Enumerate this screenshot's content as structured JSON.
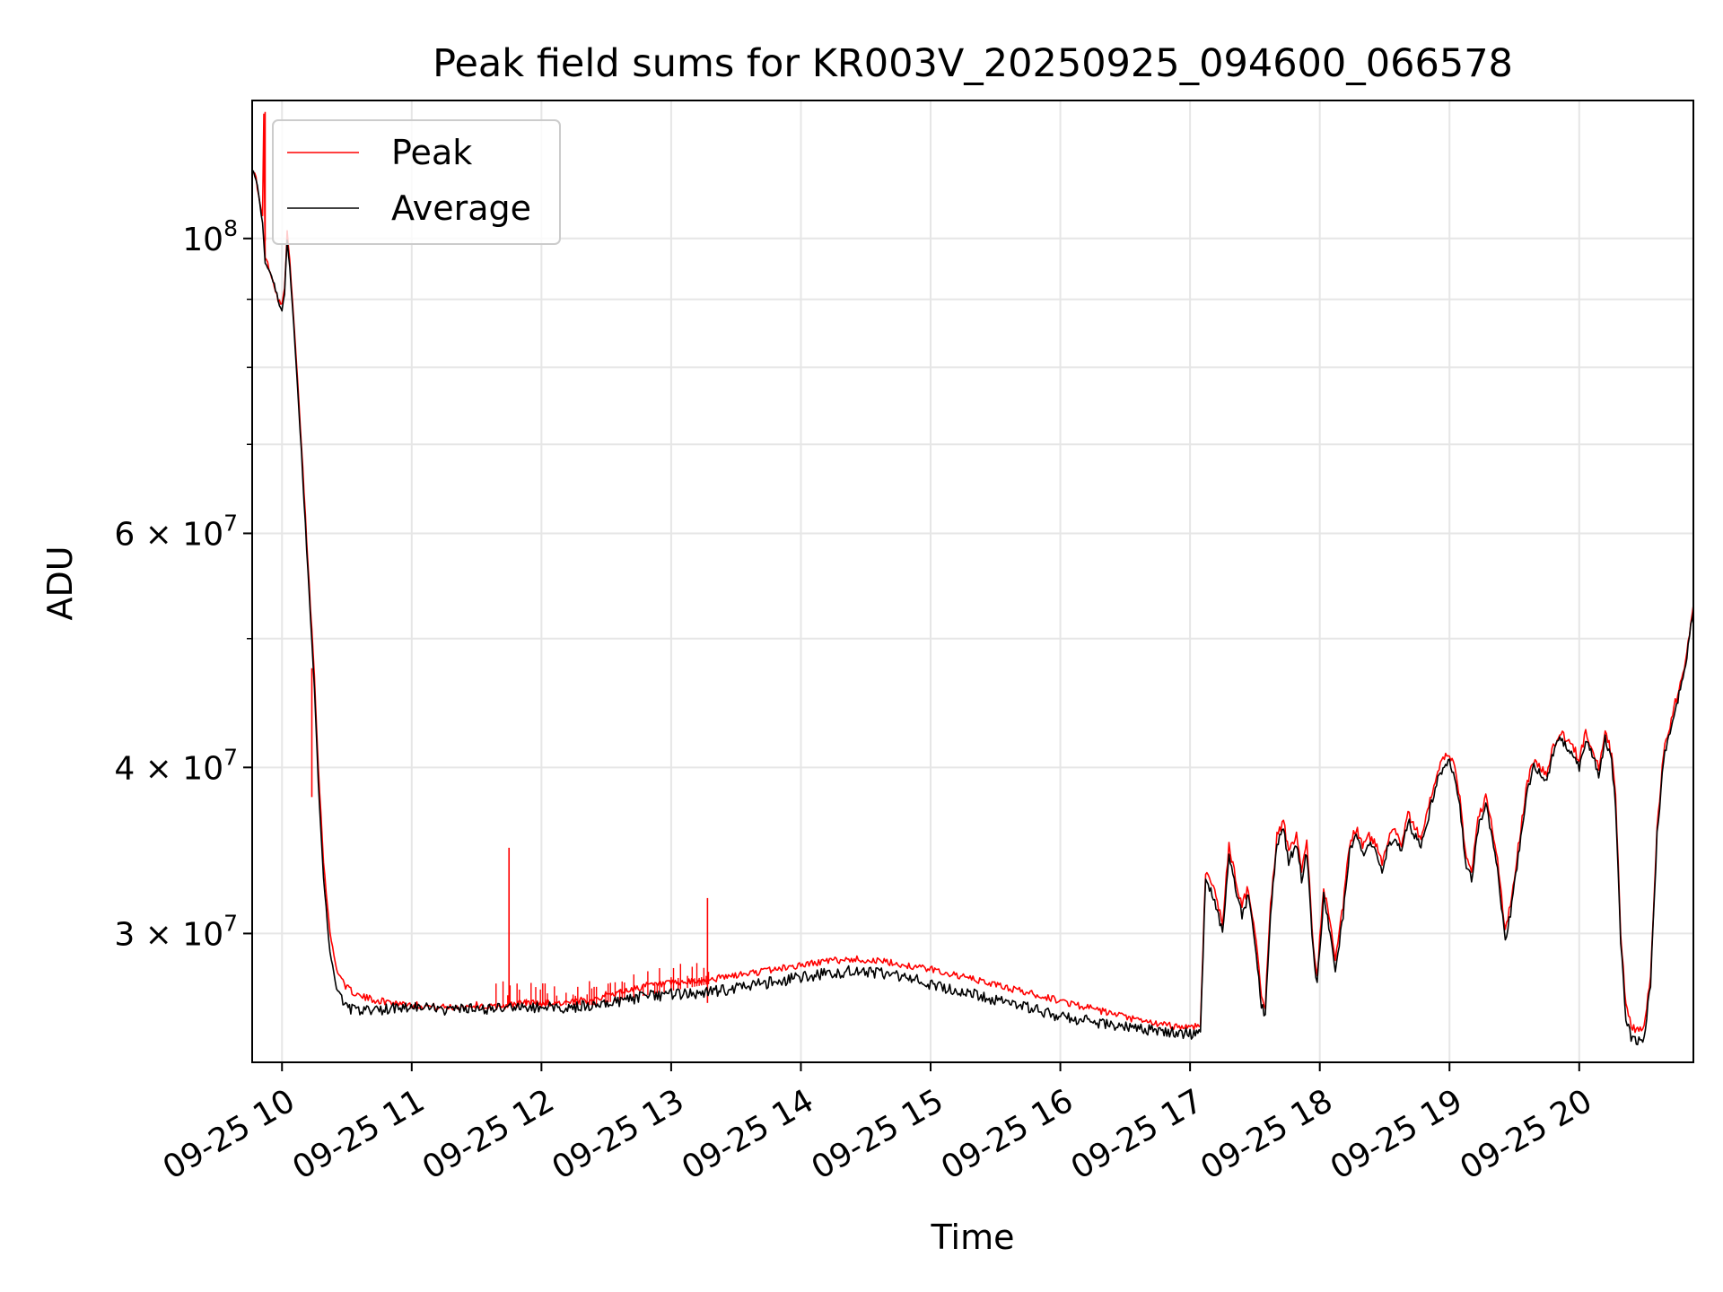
{
  "chart_data": {
    "type": "line",
    "title": "Peak field sums for KR003V_20250925_094600_066578",
    "xlabel": "Time",
    "ylabel": "ADU",
    "yscale": "log",
    "xlim": [
      9.77,
      20.88
    ],
    "ylim": [
      24000000,
      127000000
    ],
    "grid": true,
    "legend_position": "upper-left",
    "x_ticks": [
      {
        "value": 10,
        "label": "09-25 10"
      },
      {
        "value": 11,
        "label": "09-25 11"
      },
      {
        "value": 12,
        "label": "09-25 12"
      },
      {
        "value": 13,
        "label": "09-25 13"
      },
      {
        "value": 14,
        "label": "09-25 14"
      },
      {
        "value": 15,
        "label": "09-25 15"
      },
      {
        "value": 16,
        "label": "09-25 16"
      },
      {
        "value": 17,
        "label": "09-25 17"
      },
      {
        "value": 18,
        "label": "09-25 18"
      },
      {
        "value": 19,
        "label": "09-25 19"
      },
      {
        "value": 20,
        "label": "09-25 20"
      }
    ],
    "y_major_ticks": [
      {
        "value": 30000000,
        "mantissa": "3",
        "exp": "7"
      },
      {
        "value": 40000000,
        "mantissa": "4",
        "exp": "7"
      },
      {
        "value": 60000000,
        "mantissa": "6",
        "exp": "7"
      },
      {
        "value": 100000000,
        "mantissa": "",
        "exp": "8"
      }
    ],
    "y_minor_ticks": [
      50000000,
      70000000,
      80000000,
      90000000
    ],
    "series": [
      {
        "name": "Peak",
        "color": "#ff0000",
        "points": [
          [
            9.77,
            113
          ],
          [
            9.8,
            111
          ],
          [
            9.83,
            106
          ],
          [
            9.85,
            104
          ],
          [
            9.86,
            124
          ],
          [
            9.87,
            97
          ],
          [
            9.9,
            95
          ],
          [
            9.93,
            93
          ],
          [
            9.97,
            90
          ],
          [
            10.0,
            89
          ],
          [
            10.02,
            92
          ],
          [
            10.04,
            101
          ],
          [
            10.06,
            96
          ],
          [
            10.1,
            84
          ],
          [
            10.15,
            70
          ],
          [
            10.2,
            57
          ],
          [
            10.25,
            47
          ],
          [
            10.28,
            40
          ],
          [
            10.32,
            34
          ],
          [
            10.37,
            30
          ],
          [
            10.42,
            28.2
          ],
          [
            10.5,
            27.3
          ],
          [
            10.6,
            26.9
          ],
          [
            10.75,
            26.7
          ],
          [
            10.9,
            26.6
          ],
          [
            11.05,
            26.5
          ],
          [
            11.2,
            26.4
          ],
          [
            11.35,
            26.4
          ],
          [
            11.5,
            26.5
          ],
          [
            11.6,
            26.4
          ],
          [
            11.75,
            26.5
          ],
          [
            11.85,
            26.6
          ],
          [
            12.0,
            26.6
          ],
          [
            12.2,
            26.6
          ],
          [
            12.4,
            26.8
          ],
          [
            12.6,
            27.1
          ],
          [
            12.8,
            27.4
          ],
          [
            13.0,
            27.5
          ],
          [
            13.2,
            27.6
          ],
          [
            13.4,
            27.8
          ],
          [
            13.6,
            28.0
          ],
          [
            13.8,
            28.2
          ],
          [
            14.0,
            28.4
          ],
          [
            14.2,
            28.6
          ],
          [
            14.4,
            28.7
          ],
          [
            14.6,
            28.6
          ],
          [
            14.8,
            28.4
          ],
          [
            15.0,
            28.2
          ],
          [
            15.2,
            27.9
          ],
          [
            15.4,
            27.6
          ],
          [
            15.6,
            27.3
          ],
          [
            15.8,
            27.0
          ],
          [
            16.0,
            26.7
          ],
          [
            16.2,
            26.4
          ],
          [
            16.4,
            26.1
          ],
          [
            16.6,
            25.8
          ],
          [
            16.8,
            25.6
          ],
          [
            17.0,
            25.5
          ],
          [
            17.08,
            25.6
          ],
          [
            17.12,
            33.5
          ],
          [
            17.15,
            33.0
          ],
          [
            17.2,
            32.0
          ],
          [
            17.25,
            30.5
          ],
          [
            17.3,
            35.0
          ],
          [
            17.35,
            33.0
          ],
          [
            17.4,
            31.5
          ],
          [
            17.45,
            32.5
          ],
          [
            17.5,
            30.0
          ],
          [
            17.55,
            27.0
          ],
          [
            17.58,
            26.5
          ],
          [
            17.62,
            31.5
          ],
          [
            17.67,
            35.5
          ],
          [
            17.72,
            36.5
          ],
          [
            17.76,
            34.5
          ],
          [
            17.82,
            35.5
          ],
          [
            17.86,
            33.5
          ],
          [
            17.9,
            35.0
          ],
          [
            17.95,
            29.5
          ],
          [
            17.98,
            28.0
          ],
          [
            18.03,
            32.5
          ],
          [
            18.08,
            30.5
          ],
          [
            18.12,
            28.5
          ],
          [
            18.18,
            31.5
          ],
          [
            18.23,
            35.0
          ],
          [
            18.28,
            36.0
          ],
          [
            18.33,
            35.0
          ],
          [
            18.38,
            35.5
          ],
          [
            18.43,
            35.0
          ],
          [
            18.48,
            34.0
          ],
          [
            18.53,
            35.5
          ],
          [
            18.58,
            36.0
          ],
          [
            18.63,
            35.0
          ],
          [
            18.68,
            37.0
          ],
          [
            18.73,
            36.0
          ],
          [
            18.78,
            35.5
          ],
          [
            18.83,
            37.0
          ],
          [
            18.9,
            39.5
          ],
          [
            18.95,
            40.5
          ],
          [
            19.0,
            41.0
          ],
          [
            19.05,
            39.5
          ],
          [
            19.08,
            38.0
          ],
          [
            19.12,
            34.5
          ],
          [
            19.17,
            33.5
          ],
          [
            19.22,
            36.5
          ],
          [
            19.28,
            38.0
          ],
          [
            19.33,
            36.0
          ],
          [
            19.38,
            33.5
          ],
          [
            19.43,
            30.0
          ],
          [
            19.48,
            32.0
          ],
          [
            19.55,
            36.0
          ],
          [
            19.6,
            39.0
          ],
          [
            19.65,
            40.5
          ],
          [
            19.7,
            40.0
          ],
          [
            19.75,
            39.5
          ],
          [
            19.8,
            41.5
          ],
          [
            19.85,
            42.5
          ],
          [
            19.9,
            42.0
          ],
          [
            19.95,
            41.5
          ],
          [
            20.0,
            40.5
          ],
          [
            20.05,
            42.5
          ],
          [
            20.1,
            41.5
          ],
          [
            20.15,
            40.0
          ],
          [
            20.2,
            42.5
          ],
          [
            20.25,
            41.0
          ],
          [
            20.28,
            38.0
          ],
          [
            20.32,
            30.0
          ],
          [
            20.36,
            26.5
          ],
          [
            20.4,
            25.5
          ],
          [
            20.45,
            25.4
          ],
          [
            20.5,
            25.5
          ],
          [
            20.55,
            28.0
          ],
          [
            20.6,
            36.0
          ],
          [
            20.65,
            41.0
          ],
          [
            20.72,
            44.0
          ],
          [
            20.8,
            47.0
          ],
          [
            20.88,
            53.0
          ]
        ],
        "spikes": [
          [
            11.75,
            34.8
          ],
          [
            13.28,
            31.9
          ],
          [
            10.23,
            47.5
          ],
          [
            9.87,
            124.5
          ]
        ]
      },
      {
        "name": "Average",
        "color": "#000000",
        "points": [
          [
            9.77,
            113
          ],
          [
            9.8,
            111
          ],
          [
            9.83,
            106
          ],
          [
            9.85,
            103
          ],
          [
            9.87,
            96
          ],
          [
            9.9,
            95
          ],
          [
            9.93,
            93
          ],
          [
            9.97,
            90
          ],
          [
            10.0,
            88
          ],
          [
            10.02,
            91
          ],
          [
            10.04,
            100
          ],
          [
            10.06,
            95
          ],
          [
            10.1,
            83
          ],
          [
            10.15,
            69
          ],
          [
            10.2,
            56
          ],
          [
            10.25,
            46
          ],
          [
            10.28,
            39
          ],
          [
            10.32,
            33
          ],
          [
            10.37,
            29
          ],
          [
            10.42,
            27.3
          ],
          [
            10.5,
            26.4
          ],
          [
            10.6,
            26.2
          ],
          [
            10.75,
            26.3
          ],
          [
            10.9,
            26.4
          ],
          [
            11.05,
            26.4
          ],
          [
            11.2,
            26.3
          ],
          [
            11.35,
            26.3
          ],
          [
            11.5,
            26.3
          ],
          [
            11.6,
            26.3
          ],
          [
            11.75,
            26.4
          ],
          [
            11.85,
            26.4
          ],
          [
            12.0,
            26.4
          ],
          [
            12.2,
            26.4
          ],
          [
            12.4,
            26.5
          ],
          [
            12.6,
            26.7
          ],
          [
            12.8,
            26.9
          ],
          [
            13.0,
            27.0
          ],
          [
            13.2,
            27.0
          ],
          [
            13.4,
            27.2
          ],
          [
            13.6,
            27.4
          ],
          [
            13.8,
            27.6
          ],
          [
            14.0,
            27.8
          ],
          [
            14.2,
            28.0
          ],
          [
            14.4,
            28.1
          ],
          [
            14.6,
            28.0
          ],
          [
            14.8,
            27.8
          ],
          [
            15.0,
            27.5
          ],
          [
            15.2,
            27.2
          ],
          [
            15.4,
            26.9
          ],
          [
            15.6,
            26.6
          ],
          [
            15.8,
            26.3
          ],
          [
            16.0,
            26.0
          ],
          [
            16.2,
            25.8
          ],
          [
            16.4,
            25.6
          ],
          [
            16.6,
            25.4
          ],
          [
            16.8,
            25.3
          ],
          [
            17.0,
            25.2
          ],
          [
            17.08,
            25.3
          ],
          [
            17.12,
            33.0
          ],
          [
            17.15,
            32.5
          ],
          [
            17.2,
            31.5
          ],
          [
            17.25,
            30.0
          ],
          [
            17.3,
            34.5
          ],
          [
            17.35,
            32.5
          ],
          [
            17.4,
            31.0
          ],
          [
            17.45,
            32.0
          ],
          [
            17.5,
            29.5
          ],
          [
            17.55,
            26.5
          ],
          [
            17.58,
            26.0
          ],
          [
            17.62,
            31.0
          ],
          [
            17.67,
            35.0
          ],
          [
            17.72,
            36.0
          ],
          [
            17.76,
            34.0
          ],
          [
            17.82,
            35.0
          ],
          [
            17.86,
            33.0
          ],
          [
            17.9,
            34.5
          ],
          [
            17.95,
            29.0
          ],
          [
            17.98,
            27.5
          ],
          [
            18.03,
            32.0
          ],
          [
            18.08,
            30.0
          ],
          [
            18.12,
            28.0
          ],
          [
            18.18,
            31.0
          ],
          [
            18.23,
            34.5
          ],
          [
            18.28,
            35.5
          ],
          [
            18.33,
            34.5
          ],
          [
            18.38,
            35.0
          ],
          [
            18.43,
            34.5
          ],
          [
            18.48,
            33.5
          ],
          [
            18.53,
            35.0
          ],
          [
            18.58,
            35.5
          ],
          [
            18.63,
            34.5
          ],
          [
            18.68,
            36.5
          ],
          [
            18.73,
            35.5
          ],
          [
            18.78,
            35.0
          ],
          [
            18.83,
            36.5
          ],
          [
            18.9,
            39.0
          ],
          [
            18.95,
            40.0
          ],
          [
            19.0,
            40.5
          ],
          [
            19.05,
            39.0
          ],
          [
            19.08,
            37.5
          ],
          [
            19.12,
            34.0
          ],
          [
            19.17,
            33.0
          ],
          [
            19.22,
            36.0
          ],
          [
            19.28,
            37.5
          ],
          [
            19.33,
            35.5
          ],
          [
            19.38,
            33.0
          ],
          [
            19.43,
            29.5
          ],
          [
            19.48,
            31.5
          ],
          [
            19.55,
            35.5
          ],
          [
            19.6,
            38.5
          ],
          [
            19.65,
            40.0
          ],
          [
            19.7,
            39.5
          ],
          [
            19.75,
            39.0
          ],
          [
            19.8,
            41.0
          ],
          [
            19.85,
            42.0
          ],
          [
            19.9,
            41.5
          ],
          [
            19.95,
            41.0
          ],
          [
            20.0,
            40.0
          ],
          [
            20.05,
            42.0
          ],
          [
            20.1,
            41.0
          ],
          [
            20.15,
            39.5
          ],
          [
            20.2,
            42.0
          ],
          [
            20.25,
            40.5
          ],
          [
            20.28,
            37.5
          ],
          [
            20.32,
            29.5
          ],
          [
            20.36,
            26.0
          ],
          [
            20.4,
            25.0
          ],
          [
            20.45,
            24.9
          ],
          [
            20.5,
            25.0
          ],
          [
            20.55,
            27.5
          ],
          [
            20.6,
            35.5
          ],
          [
            20.65,
            40.5
          ],
          [
            20.72,
            43.5
          ],
          [
            20.8,
            46.5
          ],
          [
            20.88,
            52.5
          ]
        ]
      }
    ]
  }
}
